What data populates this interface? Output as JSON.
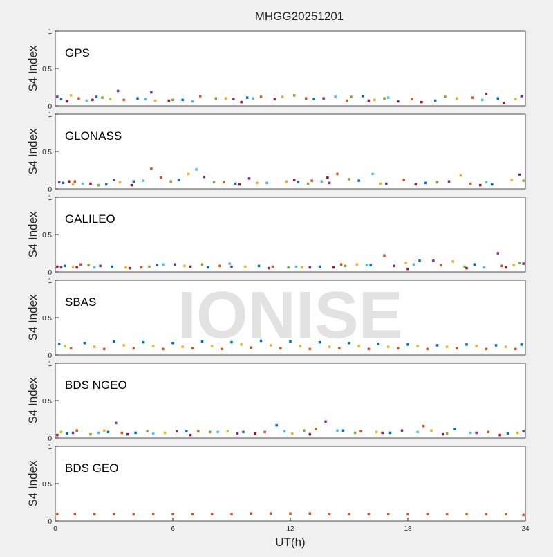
{
  "title": "MHGG20251201",
  "watermark": "IONISE",
  "chart_data": [
    {
      "type": "scatter",
      "title": "GPS",
      "ylabel": "S4 Index",
      "xlim": [
        0,
        24
      ],
      "ylim": [
        0,
        1
      ],
      "yticks": [
        0,
        0.5,
        1
      ],
      "series": [
        {
          "color": "#0072BD",
          "x": [
            0.3,
            2.1,
            4.2,
            6.5,
            9.8,
            13.2,
            15.7,
            19.4,
            22.6
          ],
          "values": [
            0.09,
            0.12,
            0.1,
            0.08,
            0.11,
            0.09,
            0.13,
            0.07,
            0.1
          ]
        },
        {
          "color": "#D95319",
          "x": [
            1.2,
            3.5,
            7.4,
            10.5,
            12.8,
            14.9,
            18.2,
            21.3
          ],
          "values": [
            0.1,
            0.08,
            0.13,
            0.12,
            0.1,
            0.07,
            0.09,
            0.11
          ]
        },
        {
          "color": "#EDB120",
          "x": [
            0.8,
            2.8,
            5.1,
            8.7,
            11.6,
            16.3,
            20.5,
            23.5
          ],
          "values": [
            0.14,
            0.09,
            0.07,
            0.1,
            0.12,
            0.08,
            0.1,
            0.09
          ]
        },
        {
          "color": "#7E2F8E",
          "x": [
            0.1,
            3.2,
            4.9,
            9.1,
            13.7,
            17.5,
            22.0,
            23.8
          ],
          "values": [
            0.12,
            0.2,
            0.18,
            0.09,
            0.1,
            0.06,
            0.16,
            0.13
          ]
        },
        {
          "color": "#77AC30",
          "x": [
            2.4,
            6.0,
            8.2,
            12.2,
            15.1,
            16.8,
            19.9
          ],
          "values": [
            0.11,
            0.08,
            0.1,
            0.14,
            0.12,
            0.1,
            0.12
          ]
        },
        {
          "color": "#4DBEEE",
          "x": [
            1.6,
            4.6,
            7.0,
            10.1,
            14.3,
            17.0,
            21.8
          ],
          "values": [
            0.07,
            0.09,
            0.06,
            0.1,
            0.12,
            0.11,
            0.08
          ]
        },
        {
          "color": "#A2142F",
          "x": [
            0.6,
            1.9,
            5.8,
            9.5,
            11.2,
            16.0,
            18.7,
            22.9
          ],
          "values": [
            0.06,
            0.08,
            0.07,
            0.05,
            0.09,
            0.07,
            0.05,
            0.04
          ]
        }
      ]
    },
    {
      "type": "scatter",
      "title": "GLONASS",
      "ylabel": "S4 Index",
      "xlim": [
        0,
        24
      ],
      "ylim": [
        0,
        1
      ],
      "yticks": [
        0,
        0.5,
        1
      ],
      "series": [
        {
          "color": "#0072BD",
          "x": [
            0.4,
            2.6,
            4.0,
            6.3,
            9.2,
            12.4,
            15.5,
            18.9,
            22.3
          ],
          "values": [
            0.08,
            0.06,
            0.1,
            0.12,
            0.07,
            0.09,
            0.11,
            0.08,
            0.06
          ]
        },
        {
          "color": "#D95319",
          "x": [
            1.0,
            4.9,
            5.4,
            8.6,
            13.1,
            14.4,
            17.8,
            21.2
          ],
          "values": [
            0.1,
            0.27,
            0.15,
            0.09,
            0.11,
            0.2,
            0.12,
            0.07
          ]
        },
        {
          "color": "#EDB120",
          "x": [
            0.9,
            3.3,
            6.8,
            10.3,
            11.8,
            16.6,
            20.7,
            23.3
          ],
          "values": [
            0.06,
            0.09,
            0.2,
            0.08,
            0.1,
            0.07,
            0.18,
            0.12
          ]
        },
        {
          "color": "#7E2F8E",
          "x": [
            0.2,
            3.0,
            7.6,
            9.9,
            14.0,
            16.9,
            20.1,
            23.7
          ],
          "values": [
            0.09,
            0.12,
            0.16,
            0.14,
            0.08,
            0.07,
            0.1,
            0.19
          ]
        },
        {
          "color": "#77AC30",
          "x": [
            2.2,
            5.9,
            8.1,
            12.9,
            15.0,
            19.5,
            23.9
          ],
          "values": [
            0.05,
            0.1,
            0.09,
            0.07,
            0.13,
            0.09,
            0.11
          ]
        },
        {
          "color": "#4DBEEE",
          "x": [
            1.4,
            4.5,
            7.2,
            10.8,
            13.6,
            16.2,
            22.0
          ],
          "values": [
            0.07,
            0.11,
            0.26,
            0.08,
            0.1,
            0.2,
            0.09
          ]
        },
        {
          "color": "#A2142F",
          "x": [
            0.7,
            1.8,
            3.9,
            9.4,
            12.2,
            13.9,
            18.4,
            21.7
          ],
          "values": [
            0.1,
            0.07,
            0.05,
            0.06,
            0.12,
            0.15,
            0.06,
            0.05
          ]
        }
      ]
    },
    {
      "type": "scatter",
      "title": "GALILEO",
      "ylabel": "S4 Index",
      "xlim": [
        0,
        24
      ],
      "ylim": [
        0,
        1
      ],
      "yticks": [
        0,
        0.5,
        1
      ],
      "series": [
        {
          "color": "#0072BD",
          "x": [
            0.5,
            2.9,
            5.2,
            7.8,
            10.4,
            13.5,
            16.1,
            18.6,
            21.4
          ],
          "values": [
            0.08,
            0.07,
            0.09,
            0.06,
            0.08,
            0.07,
            0.09,
            0.15,
            0.1
          ]
        },
        {
          "color": "#D95319",
          "x": [
            1.3,
            4.4,
            8.4,
            11.1,
            14.6,
            16.8,
            19.7,
            22.8
          ],
          "values": [
            0.1,
            0.06,
            0.08,
            0.07,
            0.1,
            0.22,
            0.09,
            0.08
          ]
        },
        {
          "color": "#EDB120",
          "x": [
            0.9,
            3.6,
            6.6,
            9.7,
            12.6,
            15.4,
            17.9,
            20.3,
            23.4
          ],
          "values": [
            0.07,
            0.06,
            0.08,
            0.07,
            0.06,
            0.1,
            0.12,
            0.14,
            0.09
          ]
        },
        {
          "color": "#7E2F8E",
          "x": [
            0.3,
            2.3,
            6.1,
            9.0,
            13.0,
            17.3,
            19.3,
            22.6,
            23.9
          ],
          "values": [
            0.06,
            0.08,
            0.1,
            0.07,
            0.06,
            0.08,
            0.15,
            0.25,
            0.11
          ]
        },
        {
          "color": "#77AC30",
          "x": [
            1.7,
            4.8,
            7.5,
            11.9,
            14.8,
            20.9,
            23.7
          ],
          "values": [
            0.09,
            0.07,
            0.1,
            0.06,
            0.08,
            0.07,
            0.12
          ]
        },
        {
          "color": "#4DBEEE",
          "x": [
            2.0,
            5.5,
            8.9,
            12.3,
            15.9,
            18.3,
            21.9
          ],
          "values": [
            0.06,
            0.1,
            0.11,
            0.07,
            0.09,
            0.1,
            0.06
          ]
        },
        {
          "color": "#A2142F",
          "x": [
            0.1,
            1.1,
            3.8,
            6.9,
            10.9,
            14.2,
            18.0,
            21.0,
            23.0
          ],
          "values": [
            0.07,
            0.06,
            0.05,
            0.07,
            0.05,
            0.06,
            0.04,
            0.05,
            0.06
          ]
        }
      ]
    },
    {
      "type": "scatter",
      "title": "SBAS",
      "ylabel": "S4 Index",
      "xlim": [
        0,
        24
      ],
      "ylim": [
        0,
        1
      ],
      "yticks": [
        0,
        0.5,
        1
      ],
      "series": [
        {
          "color": "#0072BD",
          "x": [
            0.2,
            1.5,
            3.0,
            4.5,
            6.0,
            7.5,
            9.0,
            10.5,
            12.0,
            13.5,
            15.0,
            16.5,
            18.0,
            19.5,
            21.0,
            22.5,
            23.8
          ],
          "values": [
            0.15,
            0.16,
            0.18,
            0.17,
            0.16,
            0.18,
            0.17,
            0.19,
            0.18,
            0.17,
            0.16,
            0.15,
            0.14,
            0.13,
            0.14,
            0.13,
            0.14
          ]
        },
        {
          "color": "#EDB120",
          "x": [
            0.5,
            2.0,
            3.5,
            5.0,
            6.5,
            8.0,
            9.5,
            11.0,
            12.5,
            14.0,
            15.5,
            17.0,
            18.5,
            20.0,
            21.5,
            23.0
          ],
          "values": [
            0.12,
            0.11,
            0.13,
            0.12,
            0.11,
            0.12,
            0.14,
            0.13,
            0.12,
            0.11,
            0.12,
            0.11,
            0.12,
            0.11,
            0.12,
            0.11
          ]
        },
        {
          "color": "#D95319",
          "x": [
            0.8,
            2.5,
            4.0,
            5.5,
            7.0,
            8.5,
            10.0,
            11.5,
            13.0,
            14.5,
            16.0,
            17.5,
            19.0,
            20.5,
            22.0,
            23.5
          ],
          "values": [
            0.09,
            0.08,
            0.09,
            0.08,
            0.09,
            0.08,
            0.1,
            0.09,
            0.08,
            0.09,
            0.08,
            0.09,
            0.08,
            0.09,
            0.08,
            0.08
          ]
        }
      ]
    },
    {
      "type": "scatter",
      "title": "BDS NGEO",
      "ylabel": "S4 Index",
      "xlim": [
        0,
        24
      ],
      "ylim": [
        0,
        1
      ],
      "yticks": [
        0,
        0.5,
        1
      ],
      "series": [
        {
          "color": "#0072BD",
          "x": [
            0.6,
            2.7,
            4.1,
            6.7,
            9.6,
            11.3,
            14.7,
            17.1,
            20.4,
            23.1
          ],
          "values": [
            0.06,
            0.08,
            0.07,
            0.09,
            0.08,
            0.17,
            0.1,
            0.07,
            0.12,
            0.06
          ]
        },
        {
          "color": "#D95319",
          "x": [
            1.1,
            3.4,
            7.3,
            10.7,
            13.3,
            15.6,
            18.8,
            22.1
          ],
          "values": [
            0.1,
            0.07,
            0.09,
            0.08,
            0.12,
            0.09,
            0.16,
            0.08
          ]
        },
        {
          "color": "#EDB120",
          "x": [
            0.3,
            2.5,
            5.6,
            8.8,
            12.1,
            16.4,
            19.2,
            23.6
          ],
          "values": [
            0.08,
            0.1,
            0.07,
            0.09,
            0.06,
            0.08,
            0.1,
            0.07
          ]
        },
        {
          "color": "#7E2F8E",
          "x": [
            0.9,
            3.1,
            6.2,
            9.3,
            13.8,
            17.7,
            21.5,
            23.9
          ],
          "values": [
            0.07,
            0.2,
            0.09,
            0.06,
            0.22,
            0.1,
            0.07,
            0.09
          ]
        },
        {
          "color": "#77AC30",
          "x": [
            1.8,
            4.7,
            7.9,
            12.7,
            15.3,
            20.0
          ],
          "values": [
            0.05,
            0.09,
            0.08,
            0.1,
            0.07,
            0.06
          ]
        },
        {
          "color": "#4DBEEE",
          "x": [
            2.2,
            5.0,
            8.3,
            11.7,
            14.4,
            18.5,
            21.2
          ],
          "values": [
            0.07,
            0.06,
            0.08,
            0.09,
            0.1,
            0.08,
            0.07
          ]
        },
        {
          "color": "#A2142F",
          "x": [
            0.1,
            3.7,
            6.9,
            10.2,
            13.0,
            16.7,
            19.8,
            22.7
          ],
          "values": [
            0.04,
            0.05,
            0.04,
            0.06,
            0.05,
            0.07,
            0.05,
            0.04
          ]
        }
      ]
    },
    {
      "type": "scatter",
      "title": "BDS GEO",
      "ylabel": "S4 Index",
      "xlabel": "UT(h)",
      "xlim": [
        0,
        24
      ],
      "ylim": [
        0,
        1
      ],
      "yticks": [
        0,
        0.5,
        1
      ],
      "xticks": [
        0,
        6,
        12,
        18,
        24
      ],
      "series": [
        {
          "color": "#D95319",
          "x": [
            0.1,
            1.0,
            2.0,
            3.0,
            4.0,
            5.0,
            6.0,
            7.0,
            8.0,
            9.0,
            10.0,
            11.0,
            12.0,
            13.0,
            14.0,
            15.0,
            16.0,
            17.0,
            18.0,
            19.0,
            20.0,
            21.0,
            22.0,
            23.0,
            23.9
          ],
          "values": [
            0.09,
            0.09,
            0.09,
            0.09,
            0.09,
            0.09,
            0.09,
            0.09,
            0.09,
            0.09,
            0.1,
            0.1,
            0.1,
            0.1,
            0.09,
            0.09,
            0.09,
            0.09,
            0.09,
            0.09,
            0.09,
            0.09,
            0.09,
            0.09,
            0.08
          ]
        }
      ]
    }
  ]
}
